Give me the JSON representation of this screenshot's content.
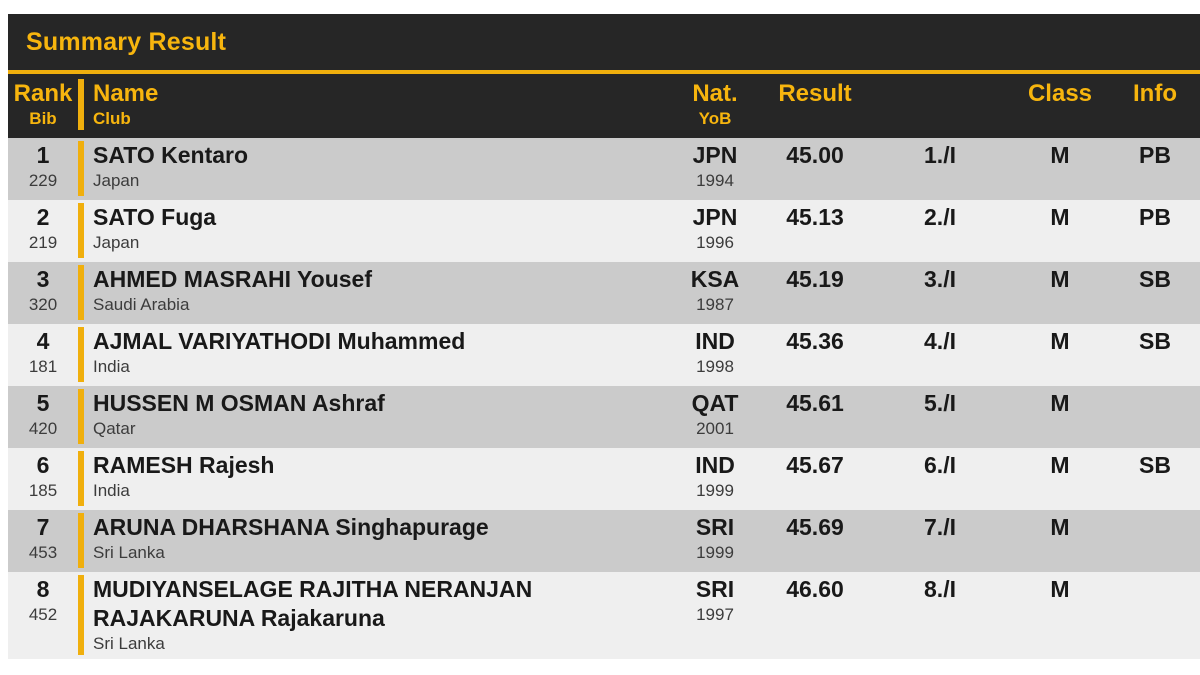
{
  "title": "Summary Result",
  "columns": {
    "rank": "Rank",
    "bib": "Bib",
    "name": "Name",
    "club": "Club",
    "nat": "Nat.",
    "yob": "YoB",
    "result": "Result",
    "place": "",
    "class": "Class",
    "info": "Info"
  },
  "rows": [
    {
      "rank": "1",
      "bib": "229",
      "name": "SATO Kentaro",
      "club": "Japan",
      "nat": "JPN",
      "yob": "1994",
      "result": "45.00",
      "place": "1./I",
      "class": "M",
      "info": "PB"
    },
    {
      "rank": "2",
      "bib": "219",
      "name": "SATO Fuga",
      "club": "Japan",
      "nat": "JPN",
      "yob": "1996",
      "result": "45.13",
      "place": "2./I",
      "class": "M",
      "info": "PB"
    },
    {
      "rank": "3",
      "bib": "320",
      "name": "AHMED MASRAHI Yousef",
      "club": "Saudi Arabia",
      "nat": "KSA",
      "yob": "1987",
      "result": "45.19",
      "place": "3./I",
      "class": "M",
      "info": "SB"
    },
    {
      "rank": "4",
      "bib": "181",
      "name": "AJMAL VARIYATHODI Muhammed",
      "club": "India",
      "nat": "IND",
      "yob": "1998",
      "result": "45.36",
      "place": "4./I",
      "class": "M",
      "info": "SB"
    },
    {
      "rank": "5",
      "bib": "420",
      "name": "HUSSEN M OSMAN Ashraf",
      "club": "Qatar",
      "nat": "QAT",
      "yob": "2001",
      "result": "45.61",
      "place": "5./I",
      "class": "M",
      "info": ""
    },
    {
      "rank": "6",
      "bib": "185",
      "name": "RAMESH Rajesh",
      "club": "India",
      "nat": "IND",
      "yob": "1999",
      "result": "45.67",
      "place": "6./I",
      "class": "M",
      "info": "SB"
    },
    {
      "rank": "7",
      "bib": "453",
      "name": "ARUNA DHARSHANA Singhapurage",
      "club": "Sri Lanka",
      "nat": "SRI",
      "yob": "1999",
      "result": "45.69",
      "place": "7./I",
      "class": "M",
      "info": ""
    },
    {
      "rank": "8",
      "bib": "452",
      "name": "MUDIYANSELAGE RAJITHA NERANJAN RAJAKARUNA Rajakaruna",
      "club": "Sri Lanka",
      "nat": "SRI",
      "yob": "1997",
      "result": "46.60",
      "place": "8./I",
      "class": "M",
      "info": ""
    }
  ],
  "colors": {
    "header_bg": "#262626",
    "accent_gold": "#F0AF0D",
    "header_text": "#F7B50E",
    "row_odd_bg": "#CBCBCB",
    "row_even_bg": "#EFEFEF",
    "main_text": "#191919",
    "sub_text": "#3C3C3C"
  }
}
